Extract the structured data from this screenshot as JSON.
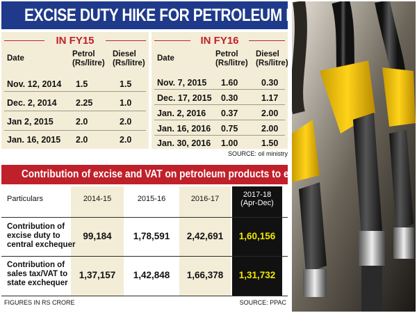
{
  "title": "EXCISE DUTY HIKE FOR PETROLEUM PRODUCTS",
  "fy15": {
    "label": "IN FY15",
    "headers": {
      "date": "Date",
      "petrol": [
        "Petrol",
        "(Rs/litre)"
      ],
      "diesel": [
        "Diesel",
        "(Rs/litre)"
      ]
    },
    "rows": [
      {
        "date": "Nov. 12, 2014",
        "petrol": "1.5",
        "diesel": "1.5"
      },
      {
        "date": "Dec. 2, 2014",
        "petrol": "2.25",
        "diesel": "1.0"
      },
      {
        "date": "Jan 2, 2015",
        "petrol": "2.0",
        "diesel": "2.0"
      },
      {
        "date": "Jan. 16, 2015",
        "petrol": "2.0",
        "diesel": "2.0"
      }
    ]
  },
  "fy16": {
    "label": "IN FY16",
    "headers": {
      "date": "Date",
      "petrol": [
        "Petrol",
        "(Rs/litre)"
      ],
      "diesel": [
        "Diesel",
        "(Rs/litre)"
      ]
    },
    "rows": [
      {
        "date": "Nov. 7, 2015",
        "petrol": "1.60",
        "diesel": "0.30"
      },
      {
        "date": "Dec. 17, 2015",
        "petrol": "0.30",
        "diesel": "1.17"
      },
      {
        "date": "Jan. 2, 2016",
        "petrol": "0.37",
        "diesel": "2.00"
      },
      {
        "date": "Jan. 16, 2016",
        "petrol": "0.75",
        "diesel": "2.00"
      },
      {
        "date": "Jan. 30, 2016",
        "petrol": "1.00",
        "diesel": "1.50"
      }
    ]
  },
  "source_top": "SOURCE: oil ministry",
  "contribution": {
    "title": "Contribution of excise and VAT on petroleum products to exchequer",
    "particulars_label": "Particulars",
    "columns": [
      "2014-15",
      "2015-16",
      "2016-17"
    ],
    "last_column": [
      "2017-18",
      "(Apr-Dec)"
    ],
    "rows": [
      {
        "label": [
          "Contribution of",
          "excise duty to",
          "central exchequer"
        ],
        "values": [
          "99,184",
          "1,78,591",
          "2,42,691",
          "1,60,156"
        ]
      },
      {
        "label": [
          "Contribution of",
          "sales tax/VAT to",
          "state exchequer"
        ],
        "values": [
          "1,37,157",
          "1,42,848",
          "1,66,378",
          "1,31,732"
        ]
      }
    ]
  },
  "footnote_left": "FIGURES IN RS CRORE",
  "footnote_right": "SOURCE: PPAC",
  "colors": {
    "title_bg": "#1f3a8a",
    "accent_red": "#c0202a",
    "panel_bg": "#f3edd7",
    "highlight_yellow": "#f1e600"
  },
  "chart_data": [
    {
      "type": "table",
      "title": "IN FY15",
      "columns": [
        "Date",
        "Petrol (Rs/litre)",
        "Diesel (Rs/litre)"
      ],
      "rows": [
        [
          "Nov. 12, 2014",
          1.5,
          1.5
        ],
        [
          "Dec. 2, 2014",
          2.25,
          1.0
        ],
        [
          "Jan 2, 2015",
          2.0,
          2.0
        ],
        [
          "Jan. 16, 2015",
          2.0,
          2.0
        ]
      ]
    },
    {
      "type": "table",
      "title": "IN FY16",
      "columns": [
        "Date",
        "Petrol (Rs/litre)",
        "Diesel (Rs/litre)"
      ],
      "rows": [
        [
          "Nov. 7, 2015",
          1.6,
          0.3
        ],
        [
          "Dec. 17, 2015",
          0.3,
          1.17
        ],
        [
          "Jan. 2, 2016",
          0.37,
          2.0
        ],
        [
          "Jan. 16, 2016",
          0.75,
          2.0
        ],
        [
          "Jan. 30, 2016",
          1.0,
          1.5
        ]
      ]
    },
    {
      "type": "table",
      "title": "Contribution of excise and VAT on petroleum products to exchequer",
      "columns": [
        "Particulars",
        "2014-15",
        "2015-16",
        "2016-17",
        "2017-18 (Apr-Dec)"
      ],
      "rows": [
        [
          "Contribution of excise duty to central exchequer",
          99184,
          178591,
          242691,
          160156
        ],
        [
          "Contribution of sales tax/VAT to state exchequer",
          137157,
          142848,
          166378,
          131732
        ]
      ]
    }
  ]
}
